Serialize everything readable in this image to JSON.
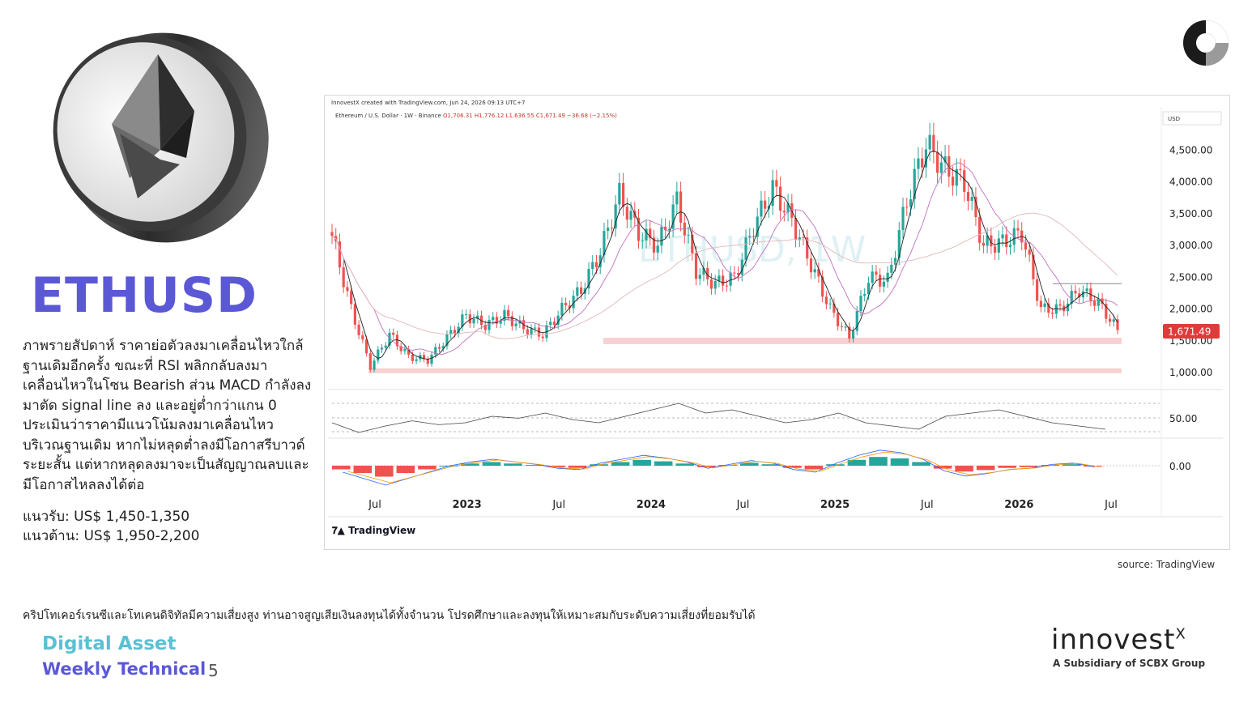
{
  "header": {
    "title": "ETHUSD"
  },
  "description": "ภาพรายสัปดาห์ ราคาย่อตัวลงมาเคลื่อนไหวใกล้ฐานเดิมอีกครั้ง ขณะที่ RSI พลิกกลับลงมาเคลื่อนไหวในโซน Bearish ส่วน MACD กำลังลงมาตัด signal line ลง และอยู่ต่ำกว่าแกน 0 ประเมินว่าราคามีแนวโน้มลงมาเคลื่อนไหวบริเวณฐานเดิม หากไม่หลุดต่ำลงมีโอกาสรีบาวด์ระยะสั้น แต่หากหลุดลงมาจะเป็นสัญญาณลบและมีโอกาสไหลลงได้ต่อ",
  "levels": {
    "support": "แนวรับ: US$ 1,450-1,350",
    "resistance": "แนวต้าน: US$ 1,950-2,200"
  },
  "chart_header": {
    "credit": "InnovestX created with TradingView.com, Jun 24, 2026 09:13 UTC+7",
    "symbol": "Ethereum / U.S. Dollar · 1W · Binance",
    "ohlc": "O1,706.31  H1,776.12  L1,636.55  C1,671.49  −36.68 (−2.15%)"
  },
  "tradingview_logo": "TradingView",
  "source": "source: TradingView",
  "disclaimer": "คริปโทเคอร์เรนซีและโทเคนดิจิทัลมีความเสี่ยงสูง ท่านอาจสูญเสียเงินลงทุนได้ทั้งจำนวน โปรดศึกษาและลงทุนให้เหมาะสมกับระดับความเสี่ยงที่ยอมรับได้",
  "footer": {
    "line1": "Digital Asset",
    "line2": "Weekly Technical",
    "page": "5"
  },
  "brand": {
    "name": "innovest",
    "suffix": "X",
    "subtitle": "A Subsidiary of SCBX Group"
  },
  "colors": {
    "title": "#5b58d6",
    "up": "#26a69a",
    "down": "#ef5350",
    "price_tag": "#e03b3b",
    "zone": "#f5c6c6"
  },
  "chart_data": [
    {
      "type": "candlestick",
      "title": "",
      "unit_label": "USD",
      "watermark": "ETHUSD, 1W",
      "x_ticks": [
        "Jul",
        "2023",
        "Jul",
        "2024",
        "Jul",
        "2025",
        "Jul",
        "2026",
        "Jul"
      ],
      "y_ticks": [
        "4,500.00",
        "4,000.00",
        "3,500.00",
        "3,000.00",
        "2,500.00",
        "2,000.00",
        "1,500.00",
        "1,000.00"
      ],
      "ylim": [
        850,
        4950
      ],
      "last_price": "1,671.49",
      "series": [
        {
          "name": "",
          "x": [
            "2022-06",
            "2022-07",
            "2022-08",
            "2022-10",
            "2022-12",
            "2023-01",
            "2023-03",
            "2023-04",
            "2023-06",
            "2023-07",
            "2023-08",
            "2023-10",
            "2023-11",
            "2023-12",
            "2024-02",
            "2024-03",
            "2024-04",
            "2024-05",
            "2024-06",
            "2024-08",
            "2024-09",
            "2024-10",
            "2024-11",
            "2024-12",
            "2025-01",
            "2025-02",
            "2025-03",
            "2025-04",
            "2025-05",
            "2025-06",
            "2025-07",
            "2025-08",
            "2025-09",
            "2025-10",
            "2025-11",
            "2025-12",
            "2026-01",
            "2026-02",
            "2026-03",
            "2026-04",
            "2026-05",
            "2026-06"
          ],
          "y": [
            3150,
            2000,
            1100,
            1600,
            1250,
            1200,
            1550,
            1900,
            1750,
            1900,
            1700,
            1600,
            2000,
            2300,
            2900,
            3800,
            3200,
            3000,
            3700,
            2600,
            2400,
            2500,
            3300,
            3900,
            3400,
            2700,
            2000,
            1550,
            2500,
            2450,
            3700,
            4600,
            4200,
            4000,
            3000,
            3050,
            3200,
            2000,
            2000,
            2300,
            2100,
            1671
          ]
        }
      ],
      "support_zones": [
        [
          1450,
          1550
        ],
        [
          1000,
          1070
        ]
      ],
      "resistance_line": 2400
    },
    {
      "type": "line",
      "title": "",
      "name": "",
      "y_tick": "50.00",
      "values": [
        45,
        30,
        40,
        48,
        42,
        45,
        55,
        52,
        60,
        50,
        45,
        55,
        65,
        75,
        60,
        65,
        55,
        45,
        50,
        60,
        45,
        40,
        35,
        55,
        60,
        65,
        55,
        45,
        40,
        35
      ]
    },
    {
      "type": "bar",
      "title": "",
      "name": "",
      "y_tick": "0.00",
      "values": [
        -5,
        -10,
        -15,
        -10,
        -5,
        0,
        3,
        5,
        3,
        1,
        -2,
        -3,
        2,
        5,
        8,
        6,
        3,
        -2,
        1,
        4,
        2,
        -3,
        -5,
        2,
        8,
        12,
        10,
        5,
        -4,
        -8,
        -6,
        -3,
        -2,
        1,
        2,
        -1
      ]
    }
  ]
}
